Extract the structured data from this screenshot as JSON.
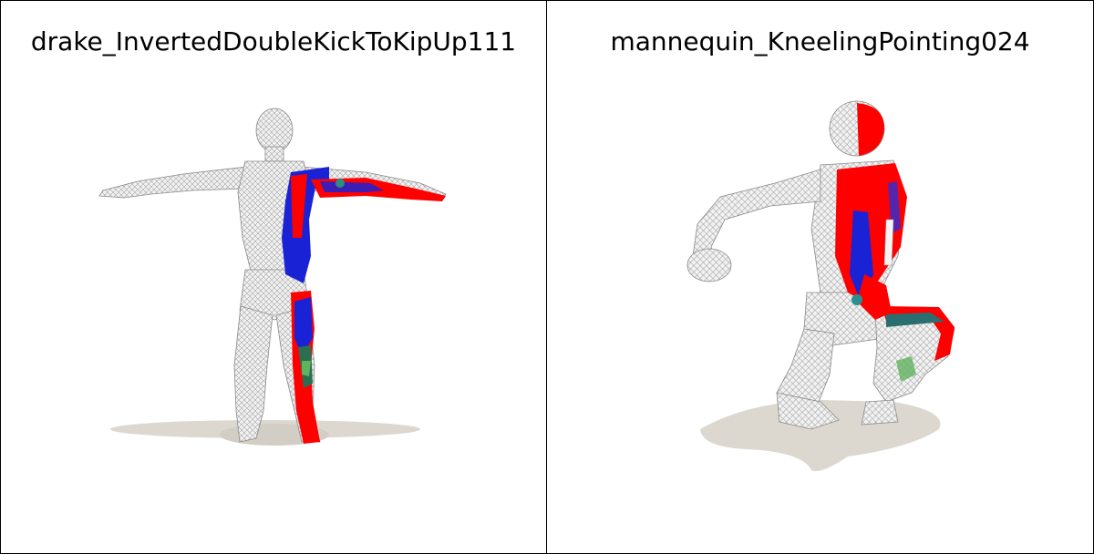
{
  "panels": [
    {
      "title": "drake_InvertedDoubleKickToKipUp111"
    },
    {
      "title": "mannequin_KneelingPointing024"
    }
  ],
  "colors": {
    "background": "#ffffff",
    "border": "#000000",
    "mesh": "#e8e8e8",
    "mesh_line": "#9a9a9a",
    "shadow": "#d9d6cf",
    "red": "#ff0000",
    "blue": "#1a22d6",
    "teal": "#2a7f6f",
    "green": "#5fb35f"
  },
  "icons": [
    "wireframe-figure-icon",
    "wireframe-figure-icon"
  ]
}
